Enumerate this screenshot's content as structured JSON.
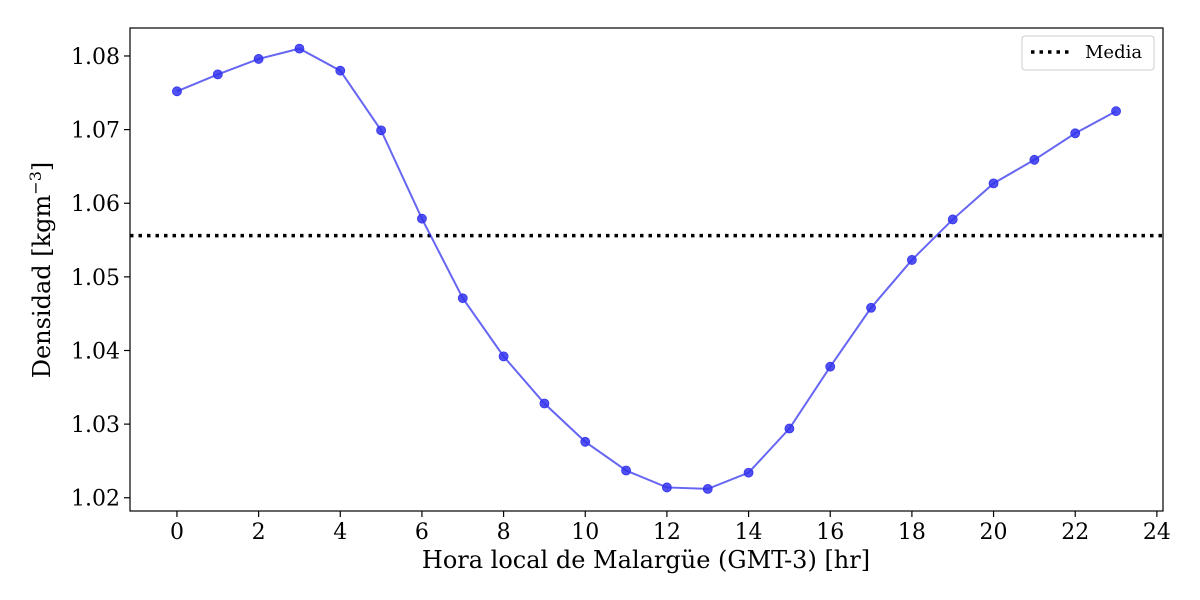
{
  "chart_data": {
    "type": "line",
    "xlabel": "Hora local de Malargüe (GMT-3) [hr]",
    "ylabel": "Densidad [kgm",
    "ylabel_sup": "−3",
    "ylabel_end": "]",
    "xlim": [
      -1.15,
      24.15
    ],
    "ylim": [
      1.0182,
      1.0838
    ],
    "xticks": [
      0,
      2,
      4,
      6,
      8,
      10,
      12,
      14,
      16,
      18,
      20,
      22,
      24
    ],
    "yticks": [
      1.02,
      1.03,
      1.04,
      1.05,
      1.06,
      1.07,
      1.08
    ],
    "ytick_labels": [
      "1.02",
      "1.03",
      "1.04",
      "1.05",
      "1.06",
      "1.07",
      "1.08"
    ],
    "grid": false,
    "legend_position": "top-right",
    "series": [
      {
        "name": "",
        "color": "#3333ee",
        "x": [
          0,
          1,
          2,
          3,
          4,
          5,
          6,
          7,
          8,
          9,
          10,
          11,
          12,
          13,
          14,
          15,
          16,
          17,
          18,
          19,
          20,
          21,
          22,
          23
        ],
        "values": [
          1.0752,
          1.0775,
          1.0796,
          1.081,
          1.078,
          1.0699,
          1.0579,
          1.0471,
          1.0392,
          1.0328,
          1.0276,
          1.0237,
          1.0214,
          1.0212,
          1.0234,
          1.0294,
          1.0378,
          1.0458,
          1.0523,
          1.0578,
          1.0627,
          1.0659,
          1.0695,
          1.0725
        ]
      }
    ],
    "reference_lines": [
      {
        "name": "Media",
        "y": 1.0556,
        "style": "dotted",
        "color": "#000000"
      }
    ]
  }
}
